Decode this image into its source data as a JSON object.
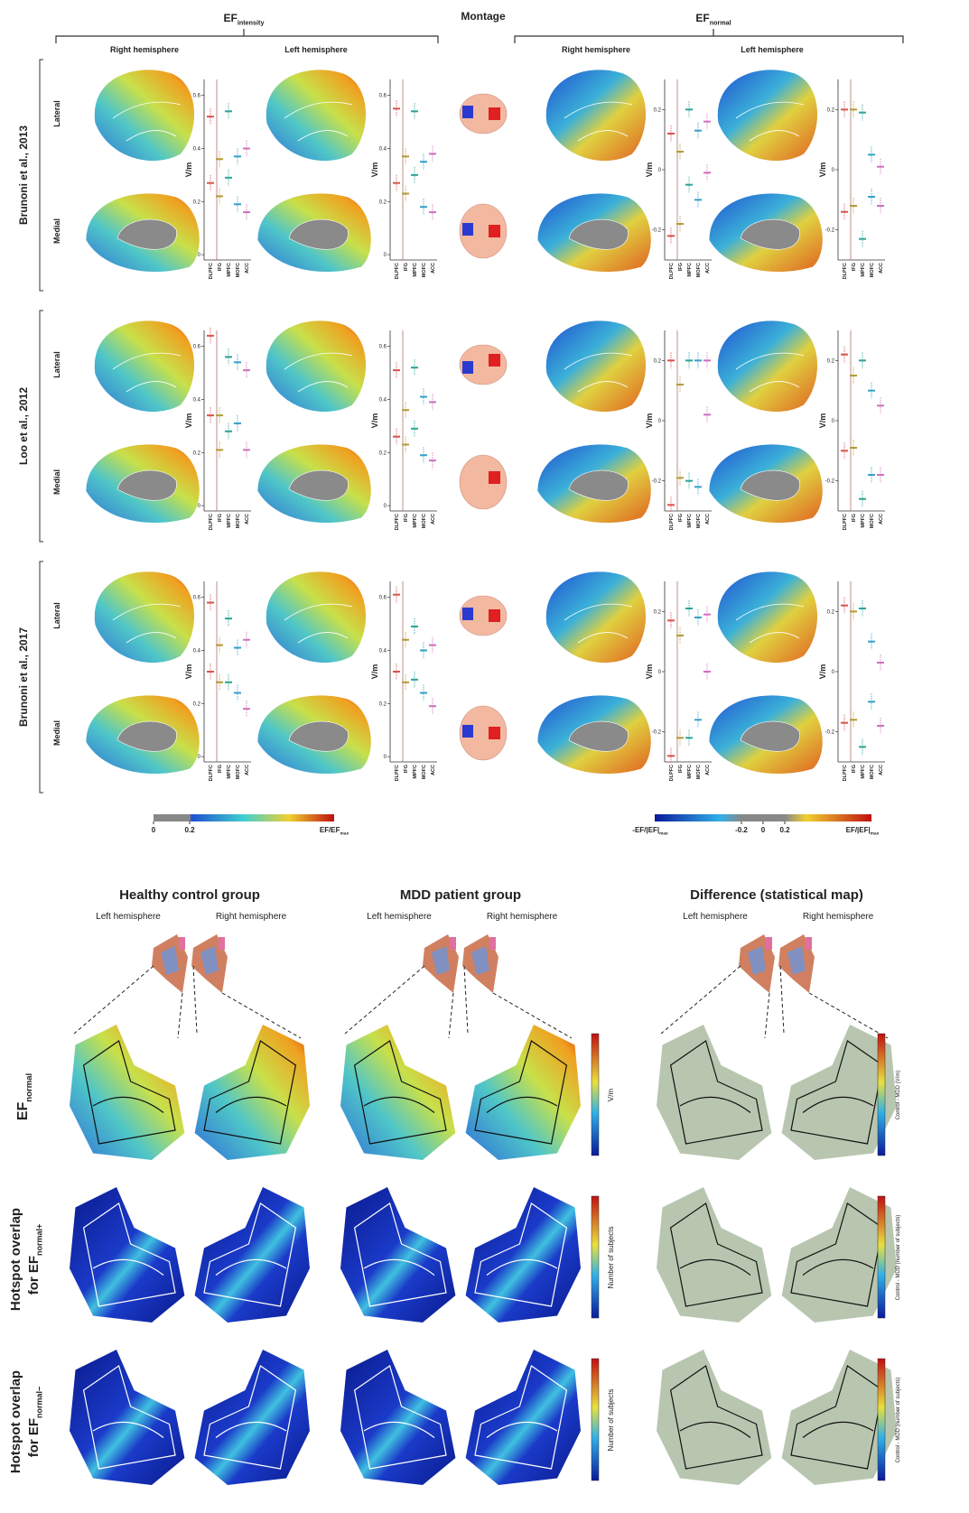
{
  "header": {
    "ef": "EF",
    "intensity": "intensity",
    "montage": "Montage",
    "normal": "normal",
    "right_hemisphere": "Right hemisphere",
    "left_hemisphere": "Left hemisphere"
  },
  "views": [
    "Lateral",
    "Medial"
  ],
  "plot_settings": {
    "y_label": "V/m",
    "regions": [
      "DLPFC",
      "IFG",
      "MPFC",
      "MOFC",
      "ACC"
    ],
    "region_colors": [
      "#d9534f",
      "#b39b3a",
      "#2aa59a",
      "#3a9fc9",
      "#d070c0"
    ],
    "intensity": {
      "ylim": [
        -0.02,
        0.66
      ],
      "yticks": [
        0,
        0.2,
        0.4,
        0.6
      ]
    },
    "normal": {
      "ylim": [
        -0.3,
        0.3
      ],
      "yticks": [
        -0.2,
        0,
        0.2
      ]
    }
  },
  "studies": [
    {
      "label": "Brunoni et al., 2013",
      "plots": [
        [
          [
            0.52,
            0.27
          ],
          [
            0.36,
            0.22
          ],
          [
            0.54,
            0.29
          ],
          [
            0.37,
            0.19
          ],
          [
            0.4,
            0.16
          ]
        ],
        [
          [
            0.55,
            0.27
          ],
          [
            0.37,
            0.23
          ],
          [
            0.54,
            0.3
          ],
          [
            0.35,
            0.18
          ],
          [
            0.38,
            0.16
          ]
        ],
        [
          [
            0.12,
            -0.22
          ],
          [
            0.06,
            -0.18
          ],
          [
            0.2,
            -0.05
          ],
          [
            0.13,
            -0.1
          ],
          [
            0.16,
            -0.01
          ]
        ],
        [
          [
            0.2,
            -0.14
          ],
          [
            0.2,
            -0.12
          ],
          [
            0.19,
            -0.23
          ],
          [
            0.05,
            -0.09
          ],
          [
            0.01,
            -0.12
          ]
        ]
      ]
    },
    {
      "label": "Loo et al., 2012",
      "plots": [
        [
          [
            0.64,
            0.34
          ],
          [
            0.34,
            0.21
          ],
          [
            0.56,
            0.28
          ],
          [
            0.54,
            0.31
          ],
          [
            0.51,
            0.21
          ]
        ],
        [
          [
            0.51,
            0.26
          ],
          [
            0.36,
            0.23
          ],
          [
            0.52,
            0.29
          ],
          [
            0.41,
            0.19
          ],
          [
            0.39,
            0.17
          ]
        ],
        [
          [
            0.2,
            -0.28
          ],
          [
            0.12,
            -0.19
          ],
          [
            0.2,
            -0.2
          ],
          [
            0.2,
            -0.22
          ],
          [
            0.2,
            0.02
          ]
        ],
        [
          [
            0.22,
            -0.1
          ],
          [
            0.15,
            -0.09
          ],
          [
            0.2,
            -0.26
          ],
          [
            0.1,
            -0.18
          ],
          [
            0.05,
            -0.18
          ]
        ]
      ]
    },
    {
      "label": "Brunoni et al., 2017",
      "plots": [
        [
          [
            0.58,
            0.32
          ],
          [
            0.42,
            0.28
          ],
          [
            0.52,
            0.28
          ],
          [
            0.41,
            0.24
          ],
          [
            0.44,
            0.18
          ]
        ],
        [
          [
            0.61,
            0.32
          ],
          [
            0.44,
            0.28
          ],
          [
            0.49,
            0.29
          ],
          [
            0.4,
            0.24
          ],
          [
            0.42,
            0.19
          ]
        ],
        [
          [
            0.17,
            -0.28
          ],
          [
            0.12,
            -0.22
          ],
          [
            0.21,
            -0.22
          ],
          [
            0.18,
            -0.16
          ],
          [
            0.19,
            0
          ]
        ],
        [
          [
            0.22,
            -0.17
          ],
          [
            0.2,
            -0.16
          ],
          [
            0.21,
            -0.25
          ],
          [
            0.1,
            -0.1
          ],
          [
            0.03,
            -0.18
          ]
        ]
      ]
    }
  ],
  "colorbars": {
    "intensity": {
      "lim": [
        0,
        1
      ],
      "ticks": [
        0,
        0.2
      ],
      "end_label": "EF/EF",
      "end_sub": "max"
    },
    "normal": {
      "lim": [
        -1,
        1
      ],
      "ticks": [
        -0.2,
        0,
        0.2
      ],
      "start_label": "-EF/|EF|",
      "end_label": "EF/|EF|",
      "sub": "max"
    }
  },
  "bottom": {
    "groups": [
      {
        "title": "Healthy control group",
        "hemispheres": [
          "Left hemisphere",
          "Right hemisphere"
        ]
      },
      {
        "title": "MDD patient group",
        "hemispheres": [
          "Left hemisphere",
          "Right hemisphere"
        ]
      },
      {
        "title": "Difference (statistical map)",
        "hemispheres": [
          "Left hemisphere",
          "Right hemisphere"
        ]
      }
    ],
    "rows": [
      {
        "label": "EF",
        "sub": "normal",
        "cbar": "V/m",
        "diff_cbar": "Control - MDD (V/m)"
      },
      {
        "label": "Hotspot overlap",
        "label2": "for EF",
        "sub": "normal+",
        "cbar": "Number of subjects",
        "diff_cbar": "Control - MDD (number of subjects)"
      },
      {
        "label": "Hotspot overlap",
        "label2": "for EF",
        "sub": "normal−",
        "cbar": "Number of subjects",
        "diff_cbar": "Control - MDD (number of subjects)"
      }
    ]
  }
}
